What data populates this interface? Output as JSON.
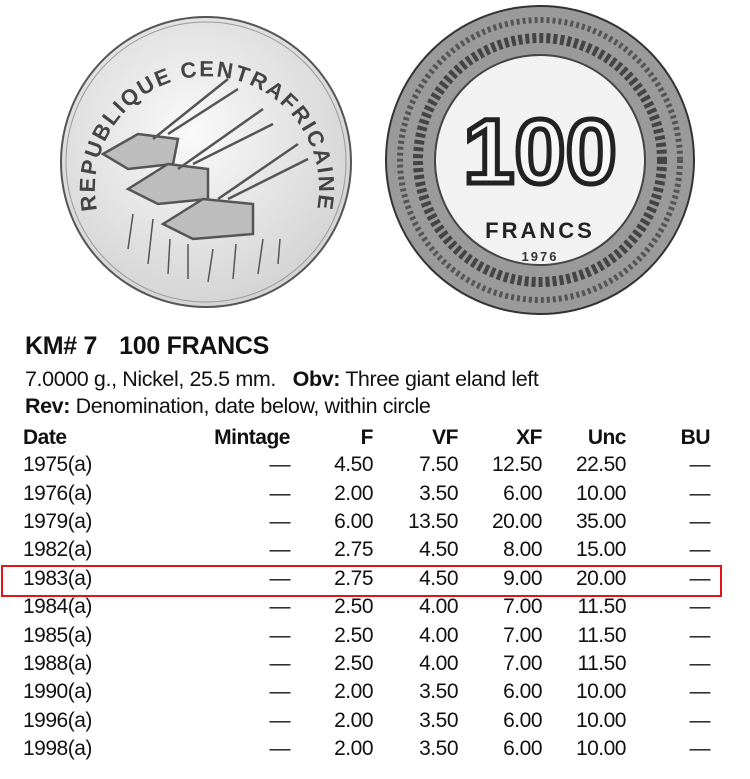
{
  "coin_images": {
    "obverse": {
      "legend": "REPUBLIQUE CENTRAFRICAINE"
    },
    "reverse": {
      "denomination": "100",
      "unit": "FRANCS",
      "date": "1976"
    }
  },
  "listing": {
    "km_number": "KM# 7",
    "denomination": "100 FRANCS",
    "specs": "7.0000 g., Nickel, 25.5 mm.",
    "obv_label": "Obv:",
    "obv_text": "Three giant eland left",
    "rev_label": "Rev:",
    "rev_text": "Denomination, date below, within circle"
  },
  "table": {
    "headers": [
      "Date",
      "Mintage",
      "F",
      "VF",
      "XF",
      "Unc",
      "BU"
    ],
    "rows": [
      [
        "1975(a)",
        "—",
        "4.50",
        "7.50",
        "12.50",
        "22.50",
        "—"
      ],
      [
        "1976(a)",
        "—",
        "2.00",
        "3.50",
        "6.00",
        "10.00",
        "—"
      ],
      [
        "1979(a)",
        "—",
        "6.00",
        "13.50",
        "20.00",
        "35.00",
        "—"
      ],
      [
        "1982(a)",
        "—",
        "2.75",
        "4.50",
        "8.00",
        "15.00",
        "—"
      ],
      [
        "1983(a)",
        "—",
        "2.75",
        "4.50",
        "9.00",
        "20.00",
        "—"
      ],
      [
        "1984(a)",
        "—",
        "2.50",
        "4.00",
        "7.00",
        "11.50",
        "—"
      ],
      [
        "1985(a)",
        "—",
        "2.50",
        "4.00",
        "7.00",
        "11.50",
        "—"
      ],
      [
        "1988(a)",
        "—",
        "2.50",
        "4.00",
        "7.00",
        "11.50",
        "—"
      ],
      [
        "1990(a)",
        "—",
        "2.00",
        "3.50",
        "6.00",
        "10.00",
        "—"
      ],
      [
        "1996(a)",
        "—",
        "2.00",
        "3.50",
        "6.00",
        "10.00",
        "—"
      ],
      [
        "1998(a)",
        "—",
        "2.00",
        "3.50",
        "6.00",
        "10.00",
        "—"
      ]
    ],
    "highlighted_row": "1983(a)",
    "highlight_color": "#e0141b"
  }
}
